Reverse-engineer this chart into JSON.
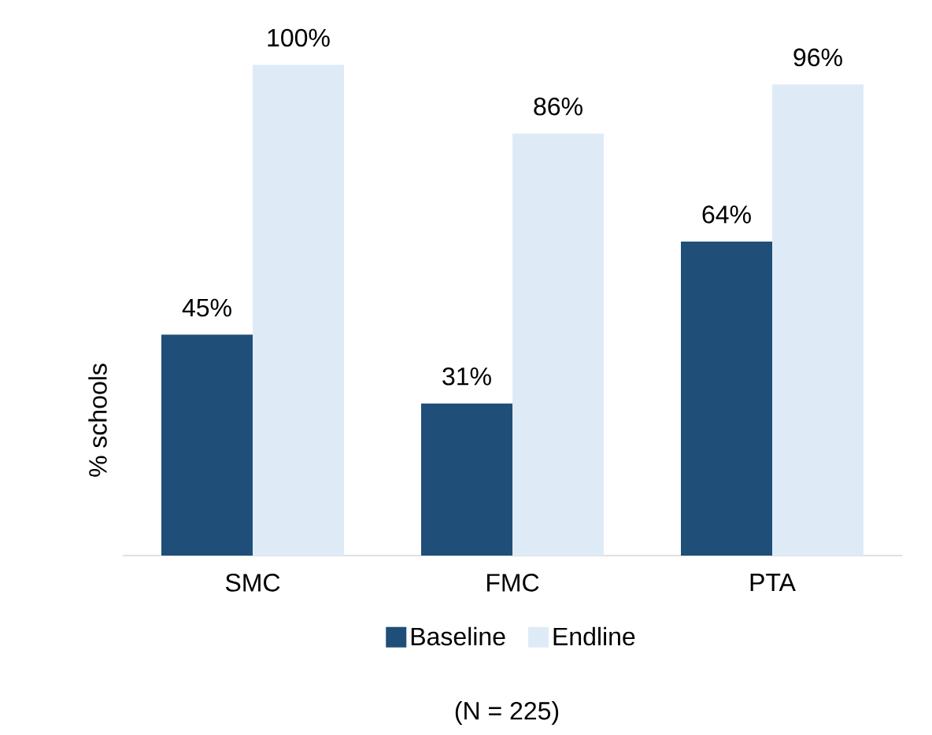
{
  "chart_data": {
    "type": "bar",
    "ylabel": "% schools",
    "categories": [
      "SMC",
      "FMC",
      "PTA"
    ],
    "series": [
      {
        "name": "Baseline",
        "color": "#1f4e79",
        "values": [
          45,
          31,
          64
        ],
        "value_labels": [
          "45%",
          "31%",
          "64%"
        ]
      },
      {
        "name": "Endline",
        "color": "#deebf7",
        "values": [
          100,
          86,
          96
        ],
        "value_labels": [
          "100%",
          "86%",
          "96%"
        ]
      }
    ],
    "legend": "bottom",
    "annotations": [
      "(N = 225)"
    ]
  }
}
